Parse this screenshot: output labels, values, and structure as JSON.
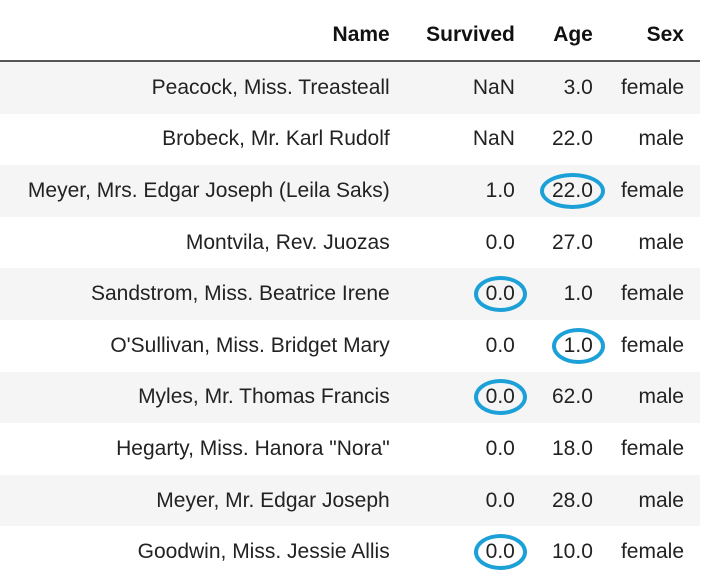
{
  "columns": {
    "name": "Name",
    "survived": "Survived",
    "age": "Age",
    "sex": "Sex"
  },
  "rows": [
    {
      "name": "Peacock, Miss. Treasteall",
      "survived": "NaN",
      "age": "3.0",
      "sex": "female",
      "circle_survived": false,
      "circle_age": false
    },
    {
      "name": "Brobeck, Mr. Karl Rudolf",
      "survived": "NaN",
      "age": "22.0",
      "sex": "male",
      "circle_survived": false,
      "circle_age": false
    },
    {
      "name": "Meyer, Mrs. Edgar Joseph (Leila Saks)",
      "survived": "1.0",
      "age": "22.0",
      "sex": "female",
      "circle_survived": false,
      "circle_age": true
    },
    {
      "name": "Montvila, Rev. Juozas",
      "survived": "0.0",
      "age": "27.0",
      "sex": "male",
      "circle_survived": false,
      "circle_age": false
    },
    {
      "name": "Sandstrom, Miss. Beatrice Irene",
      "survived": "0.0",
      "age": "1.0",
      "sex": "female",
      "circle_survived": true,
      "circle_age": false
    },
    {
      "name": "O'Sullivan, Miss. Bridget Mary",
      "survived": "0.0",
      "age": "1.0",
      "sex": "female",
      "circle_survived": false,
      "circle_age": true
    },
    {
      "name": "Myles, Mr. Thomas Francis",
      "survived": "0.0",
      "age": "62.0",
      "sex": "male",
      "circle_survived": true,
      "circle_age": false
    },
    {
      "name": "Hegarty, Miss. Hanora \"Nora\"",
      "survived": "0.0",
      "age": "18.0",
      "sex": "female",
      "circle_survived": false,
      "circle_age": false
    },
    {
      "name": "Meyer, Mr. Edgar Joseph",
      "survived": "0.0",
      "age": "28.0",
      "sex": "male",
      "circle_survived": false,
      "circle_age": false
    },
    {
      "name": "Goodwin, Miss. Jessie Allis",
      "survived": "0.0",
      "age": "10.0",
      "sex": "female",
      "circle_survived": true,
      "circle_age": false
    }
  ],
  "colors": {
    "highlight_circle": "#1ca0d8",
    "striped_row": "#f5f5f5",
    "header_border": "#555555"
  }
}
